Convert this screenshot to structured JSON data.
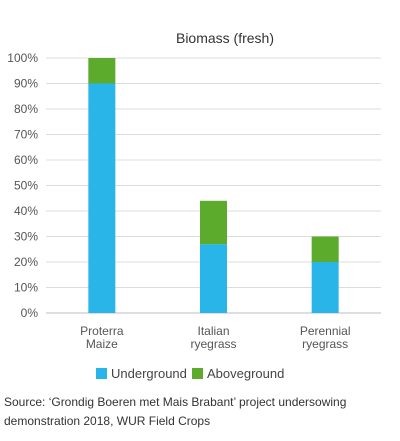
{
  "chart_data": {
    "type": "bar",
    "stacked": true,
    "title": "Biomass (fresh)",
    "categories": [
      [
        "Proterra",
        "Maize"
      ],
      [
        "Italian",
        "ryegrass"
      ],
      [
        "Perennial",
        "ryegrass"
      ]
    ],
    "series": [
      {
        "name": "Underground",
        "values": [
          90,
          27,
          20
        ],
        "color": "#29b5e8"
      },
      {
        "name": "Aboveground",
        "values": [
          10,
          17,
          10
        ],
        "color": "#5cab2c"
      }
    ],
    "ylim": [
      0,
      100
    ],
    "yticks": [
      "0%",
      "10%",
      "20%",
      "30%",
      "40%",
      "50%",
      "60%",
      "70%",
      "80%",
      "90%",
      "100%"
    ],
    "grid": true,
    "legend": "bottom"
  },
  "source_note": "Source: ‘Grondig Boeren met Mais Brabant’ project undersowing demonstration 2018, WUR Field Crops"
}
